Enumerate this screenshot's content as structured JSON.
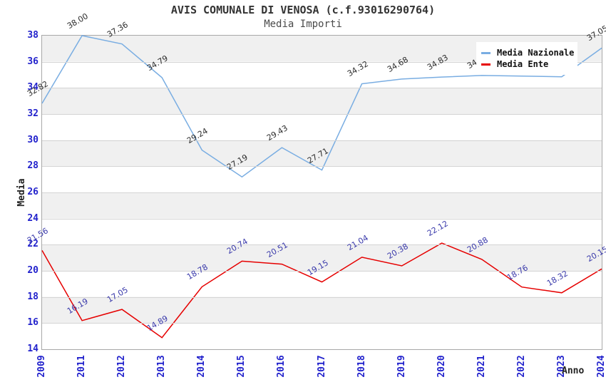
{
  "title": "AVIS COMUNALE DI VENOSA (c.f.93016290764)",
  "subtitle": "Media Importi",
  "axes": {
    "x_title": "Anno",
    "y_title": "Media",
    "y_ticks": [
      "38",
      "36",
      "34",
      "32",
      "30",
      "28",
      "26",
      "24",
      "22",
      "20",
      "18",
      "16",
      "14"
    ],
    "tick_color": "#2222cc",
    "grid_color": "#d4d4d4",
    "band_color": "#f0f0f0",
    "border_color": "#a8a8a8"
  },
  "legend": {
    "position": "top-right",
    "items": [
      {
        "label": "Media Nazionale",
        "color": "#79ade2"
      },
      {
        "label": "Media Ente",
        "color": "#e60000"
      }
    ]
  },
  "chart_data": {
    "type": "line",
    "title": "AVIS COMUNALE DI VENOSA (c.f.93016290764)",
    "subtitle": "Media Importi",
    "xlabel": "Anno",
    "ylabel": "Media",
    "ylim": [
      14,
      38
    ],
    "y_grid_step": 2,
    "grid": true,
    "legend_position": "top-right",
    "categories": [
      "2009",
      "2011",
      "2012",
      "2013",
      "2014",
      "2015",
      "2016",
      "2017",
      "2018",
      "2019",
      "2020",
      "2021",
      "2022",
      "2023",
      "2024"
    ],
    "series": [
      {
        "name": "Media Nazionale",
        "color": "#79ade2",
        "label_color": "#2b2b2b",
        "values": [
          32.82,
          38.0,
          37.36,
          34.79,
          29.24,
          27.19,
          29.43,
          27.71,
          34.32,
          34.68,
          34.83,
          34.95,
          34.9,
          34.85,
          37.05
        ],
        "note_labels_covered_by_legend": [
          "2021",
          "2022",
          "2023"
        ]
      },
      {
        "name": "Media Ente",
        "color": "#e60000",
        "label_color": "#3838aa",
        "values": [
          21.56,
          16.19,
          17.05,
          14.89,
          18.78,
          20.74,
          20.51,
          19.15,
          21.04,
          20.38,
          22.12,
          20.88,
          18.76,
          18.32,
          20.15
        ]
      }
    ]
  }
}
